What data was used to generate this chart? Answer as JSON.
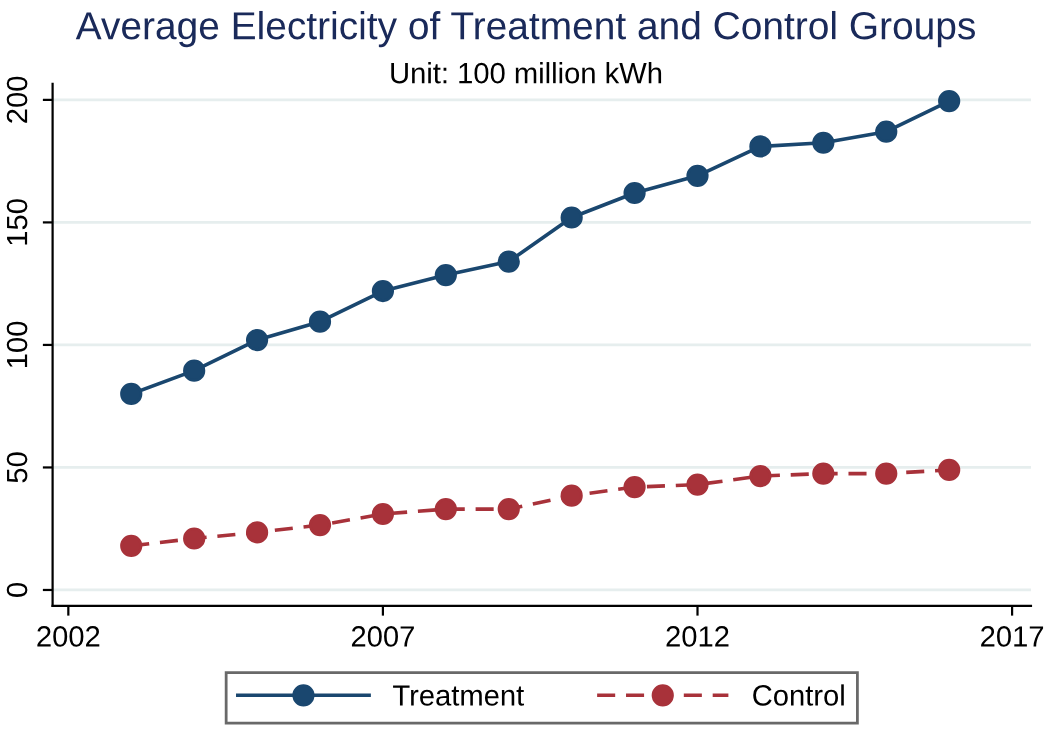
{
  "chart_data": {
    "type": "line",
    "title": "Average Electricity of Treatment and Control Groups",
    "subtitle": "Unit: 100 million kWh",
    "x": [
      2003,
      2004,
      2005,
      2006,
      2007,
      2008,
      2009,
      2010,
      2011,
      2012,
      2013,
      2014,
      2015,
      2016
    ],
    "series": [
      {
        "name": "Treatment",
        "color": "#1a476f",
        "line_style": "solid",
        "values": [
          80,
          89.5,
          102,
          109.5,
          122,
          128.5,
          134,
          152,
          162,
          169,
          181,
          182.5,
          187,
          199.5
        ]
      },
      {
        "name": "Control",
        "color": "#a8323a",
        "line_style": "dashed",
        "values": [
          18,
          21,
          23.5,
          26.5,
          31,
          33,
          33,
          38.5,
          42,
          43,
          46.5,
          47.5,
          47.5,
          49
        ]
      }
    ],
    "marker": "circle",
    "xlim": [
      2001.75,
      2017.3
    ],
    "xticks": [
      2002,
      2007,
      2012,
      2017
    ],
    "ylim": [
      -6.5,
      206.5
    ],
    "yticks": [
      0,
      50,
      100,
      150,
      200
    ],
    "grid": "y",
    "legend": "bottom"
  }
}
